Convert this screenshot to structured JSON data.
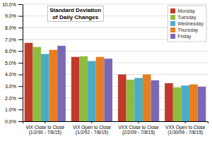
{
  "chart_data": {
    "type": "bar",
    "title": "Standard Deviation\nof Daily Changes",
    "categories": [
      "VIX Close to Close\n(1/2/90 - 7/8/15)",
      "VIX Open to Close\n(1/2/92 - 7/8/15)",
      "VXX Close to Close\n(2/2/09 - 7/8/15)",
      "VXX Open to Close\n(1/30/09 - 7/8/15)"
    ],
    "series": [
      {
        "name": "Monday",
        "color": "#c0392b",
        "values": [
          6.7,
          5.5,
          4.0,
          3.25
        ]
      },
      {
        "name": "Tuesday",
        "color": "#8fbc3f",
        "values": [
          6.35,
          5.55,
          3.55,
          2.9
        ]
      },
      {
        "name": "Wednesday",
        "color": "#4bacc6",
        "values": [
          5.75,
          5.15,
          3.7,
          3.05
        ]
      },
      {
        "name": "Thursday",
        "color": "#e67e22",
        "values": [
          6.1,
          5.5,
          4.0,
          3.15
        ]
      },
      {
        "name": "Friday",
        "color": "#7b68b5",
        "values": [
          6.45,
          5.35,
          3.5,
          2.95
        ]
      }
    ],
    "ylim": [
      0,
      10.0
    ],
    "yticks": [
      {
        "value": 0.0,
        "label": "0.0%"
      },
      {
        "value": 1.0,
        "label": "1.0%"
      },
      {
        "value": 2.0,
        "label": "2.0%"
      },
      {
        "value": 3.0,
        "label": "3.0%"
      },
      {
        "value": 4.0,
        "label": "4.0%"
      },
      {
        "value": 5.0,
        "label": "5.0%"
      },
      {
        "value": 6.0,
        "label": "6.0%"
      },
      {
        "value": 7.0,
        "label": "7.0%"
      },
      {
        "value": 8.0,
        "label": "8.0%"
      },
      {
        "value": 9.0,
        "label": "9.0%"
      },
      {
        "value": 10.0,
        "label": "10.0%"
      }
    ],
    "grid": true,
    "legend": "upper right"
  }
}
